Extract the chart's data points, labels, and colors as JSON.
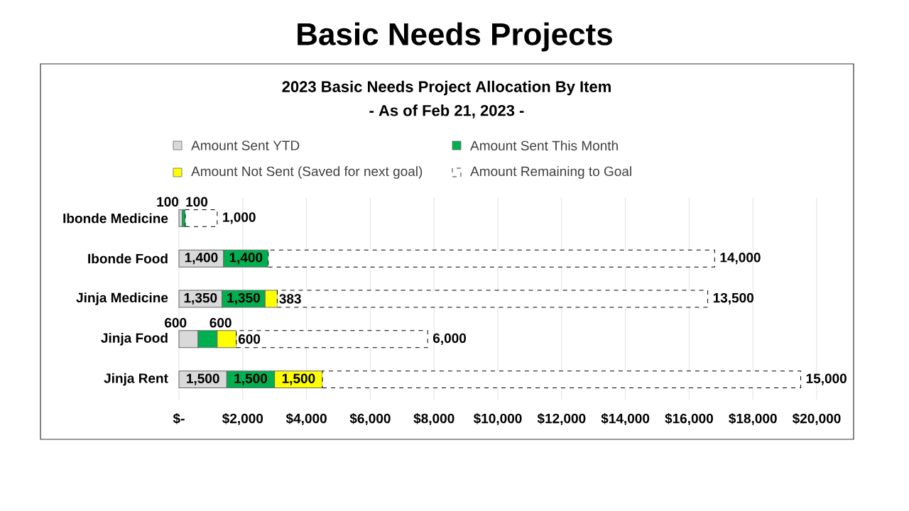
{
  "chart_data": {
    "type": "bar",
    "orientation": "horizontal",
    "stacked": true,
    "title": "Basic Needs Projects",
    "subtitle": "2023 Basic Needs Project Allocation By Item",
    "annotations": [
      "- As of Feb 21, 2023 -"
    ],
    "categories": [
      "Ibonde Medicine",
      "Ibonde Food",
      "Jinja Medicine",
      "Jinja Food",
      "Jinja Rent"
    ],
    "series": [
      {
        "name": "Amount Sent YTD",
        "color": "#d9d9d9",
        "values": [
          100,
          1400,
          1350,
          600,
          1500
        ],
        "value_labels": [
          "100",
          "1,400",
          "1,350",
          "600",
          "1,500"
        ]
      },
      {
        "name": "Amount Sent This Month",
        "color": "#00b050",
        "values": [
          100,
          1400,
          1350,
          600,
          1500
        ],
        "value_labels": [
          "100",
          "1,400",
          "1,350",
          "600",
          "1,500"
        ]
      },
      {
        "name": "Amount Not Sent (Saved for next goal)",
        "color": "#ffff00",
        "values": [
          null,
          null,
          383,
          600,
          1500
        ],
        "value_labels": [
          null,
          null,
          "383",
          "600",
          "1,500"
        ]
      },
      {
        "name": "Amount Remaining to Goal",
        "color": "#ffffff",
        "line_style": "dashed",
        "values": [
          1000,
          14000,
          13500,
          6000,
          15000
        ],
        "value_labels": [
          "1,000",
          "14,000",
          "13,500",
          "6,000",
          "15,000"
        ]
      }
    ],
    "xlim": [
      0,
      20000
    ],
    "xticks": [
      {
        "value": 0,
        "label": "$-"
      },
      {
        "value": 2000,
        "label": "$2,000"
      },
      {
        "value": 4000,
        "label": "$4,000"
      },
      {
        "value": 6000,
        "label": "$6,000"
      },
      {
        "value": 8000,
        "label": "$8,000"
      },
      {
        "value": 10000,
        "label": "$10,000"
      },
      {
        "value": 12000,
        "label": "$12,000"
      },
      {
        "value": 14000,
        "label": "$14,000"
      },
      {
        "value": 16000,
        "label": "$16,000"
      },
      {
        "value": 18000,
        "label": "$18,000"
      },
      {
        "value": 20000,
        "label": "$20,000"
      }
    ],
    "grid": "x",
    "legend": "top"
  }
}
